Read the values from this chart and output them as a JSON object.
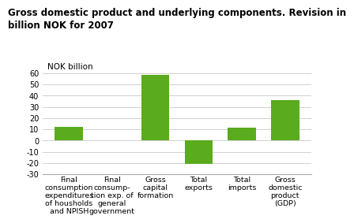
{
  "title": "Gross domestic product and underlying components. Revision in\nbillion NOK for 2007",
  "ylabel": "NOK billion",
  "categories": [
    "Final\nconsumption\nexpenditures\nof housholds\nand NPISH",
    "Final\nconsump-\ntion exp. of\ngeneral\ngovernment",
    "Gross\ncapital\nformation",
    "Total\nexports",
    "Total\nimports",
    "Gross\ndomestic\nproduct\n(GDP)"
  ],
  "values": [
    12.5,
    0.5,
    58.5,
    -21.0,
    11.5,
    36.0
  ],
  "bar_color": "#5aab1e",
  "ylim": [
    -30,
    60
  ],
  "yticks": [
    -30,
    -20,
    -10,
    0,
    10,
    20,
    30,
    40,
    50,
    60
  ],
  "grid_color": "#d0d0d0",
  "background_color": "#ffffff",
  "title_fontsize": 8.5,
  "ylabel_fontsize": 7.5,
  "tick_fontsize": 7,
  "xtick_fontsize": 6.8
}
